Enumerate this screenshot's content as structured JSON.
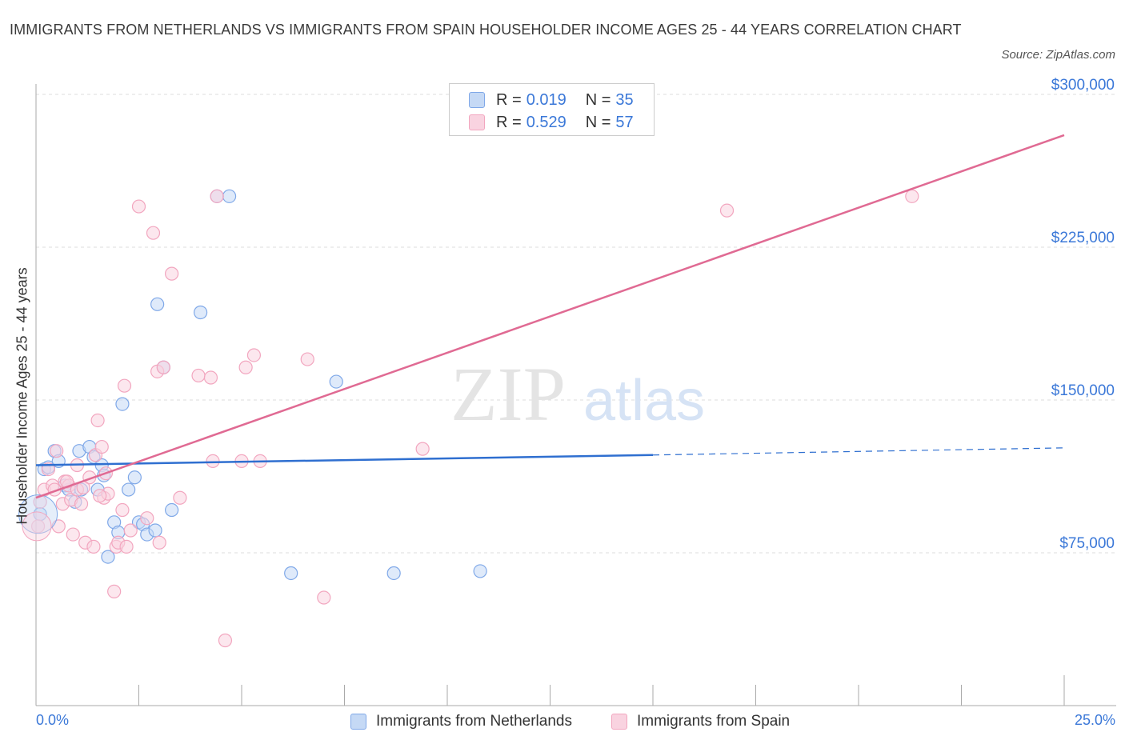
{
  "chart_data": {
    "type": "scatter",
    "title": "IMMIGRANTS FROM NETHERLANDS VS IMMIGRANTS FROM SPAIN HOUSEHOLDER INCOME AGES 25 - 44 YEARS CORRELATION CHART",
    "source": "Source: ZipAtlas.com",
    "xlabel": "",
    "ylabel": "Householder Income Ages 25 - 44 years",
    "xlim": [
      0,
      25
    ],
    "ylim": [
      0,
      300000
    ],
    "x_tick_labels": [
      "0.0%",
      "25.0%"
    ],
    "y_ticks": [
      75000,
      150000,
      225000,
      300000
    ],
    "y_tick_labels": [
      "$75,000",
      "$150,000",
      "$225,000",
      "$300,000"
    ],
    "watermark": [
      "ZIP",
      "atlas"
    ],
    "legend": [
      {
        "r_label": "R =",
        "r_value": "0.019",
        "n_label": "N =",
        "n_value": "35"
      },
      {
        "r_label": "R =",
        "r_value": "0.529",
        "n_label": "N =",
        "n_value": "57"
      }
    ],
    "series": [
      {
        "name": "Immigrants from Netherlands",
        "color": "#7fa8e8",
        "fill": "#c5d9f5",
        "line_color": "#2f6fd0",
        "trend": {
          "x0": 0,
          "y0": 118000,
          "x1": 15,
          "y1": 123000,
          "dash_x1": 25,
          "dash_y1": 126500
        },
        "points": [
          [
            0.1,
            94000
          ],
          [
            0.2,
            116000
          ],
          [
            0.3,
            117000
          ],
          [
            0.45,
            125000
          ],
          [
            0.55,
            120000
          ],
          [
            0.7,
            108000
          ],
          [
            0.8,
            106000
          ],
          [
            0.95,
            100000
          ],
          [
            1.05,
            125000
          ],
          [
            1.1,
            106000
          ],
          [
            1.3,
            127000
          ],
          [
            1.4,
            122000
          ],
          [
            1.5,
            106000
          ],
          [
            1.6,
            118000
          ],
          [
            1.65,
            113000
          ],
          [
            1.75,
            73000
          ],
          [
            1.9,
            90000
          ],
          [
            2.0,
            85000
          ],
          [
            2.1,
            148000
          ],
          [
            2.25,
            106000
          ],
          [
            2.4,
            112000
          ],
          [
            2.5,
            90000
          ],
          [
            2.6,
            89000
          ],
          [
            2.7,
            84000
          ],
          [
            2.9,
            86000
          ],
          [
            2.95,
            197000
          ],
          [
            3.1,
            166000
          ],
          [
            3.3,
            96000
          ],
          [
            4.0,
            193000
          ],
          [
            4.4,
            250000
          ],
          [
            4.7,
            250000
          ],
          [
            6.2,
            65000
          ],
          [
            7.3,
            159000
          ],
          [
            8.7,
            65000
          ],
          [
            10.8,
            66000
          ]
        ]
      },
      {
        "name": "Immigrants from Spain",
        "color": "#f2a6bf",
        "fill": "#f9d3e0",
        "line_color": "#e06a93",
        "trend": {
          "x0": 0,
          "y0": 102000,
          "x1": 25,
          "y1": 280000
        },
        "points": [
          [
            0.05,
            88000
          ],
          [
            0.1,
            100000
          ],
          [
            0.2,
            106000
          ],
          [
            0.3,
            116000
          ],
          [
            0.4,
            108000
          ],
          [
            0.45,
            106000
          ],
          [
            0.5,
            125000
          ],
          [
            0.55,
            88000
          ],
          [
            0.65,
            99000
          ],
          [
            0.7,
            110000
          ],
          [
            0.8,
            108000
          ],
          [
            0.85,
            101000
          ],
          [
            0.9,
            84000
          ],
          [
            1.0,
            118000
          ],
          [
            1.1,
            99000
          ],
          [
            1.2,
            80000
          ],
          [
            1.3,
            112000
          ],
          [
            1.4,
            78000
          ],
          [
            1.45,
            123000
          ],
          [
            1.5,
            140000
          ],
          [
            1.6,
            127000
          ],
          [
            1.65,
            102000
          ],
          [
            1.7,
            114000
          ],
          [
            1.75,
            104000
          ],
          [
            1.9,
            56000
          ],
          [
            1.95,
            78000
          ],
          [
            2.0,
            80000
          ],
          [
            2.1,
            96000
          ],
          [
            2.15,
            157000
          ],
          [
            2.2,
            78000
          ],
          [
            2.5,
            245000
          ],
          [
            2.7,
            92000
          ],
          [
            2.85,
            232000
          ],
          [
            2.95,
            164000
          ],
          [
            3.0,
            80000
          ],
          [
            3.1,
            166000
          ],
          [
            3.3,
            212000
          ],
          [
            3.5,
            102000
          ],
          [
            3.95,
            162000
          ],
          [
            4.25,
            161000
          ],
          [
            4.3,
            120000
          ],
          [
            4.4,
            250000
          ],
          [
            4.6,
            32000
          ],
          [
            5.0,
            120000
          ],
          [
            5.1,
            166000
          ],
          [
            5.3,
            172000
          ],
          [
            5.45,
            120000
          ],
          [
            6.6,
            170000
          ],
          [
            7.0,
            53000
          ],
          [
            9.4,
            126000
          ],
          [
            16.8,
            243000
          ],
          [
            21.3,
            250000
          ],
          [
            1.0,
            106000
          ],
          [
            0.75,
            110000
          ],
          [
            1.55,
            103000
          ],
          [
            2.3,
            86000
          ],
          [
            1.15,
            107000
          ]
        ]
      }
    ]
  }
}
